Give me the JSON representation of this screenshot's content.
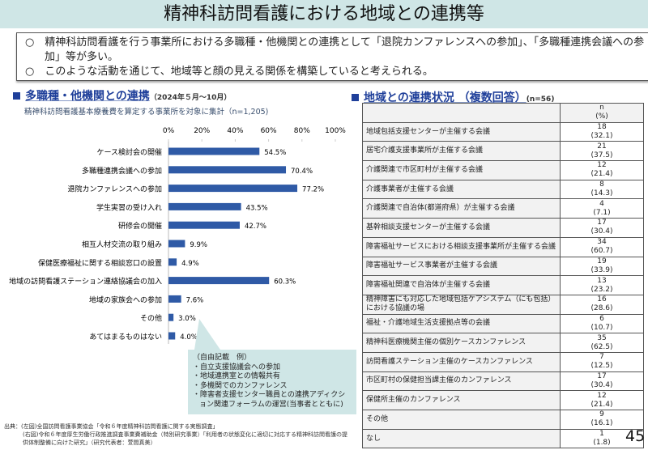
{
  "title": "精神科訪問看護における地域との連携等",
  "summary": [
    "○　精神科訪問看護を行う事業所における多職種・他機関との連携として「退院カンファレンスへの参加」、「多職種連携会議への参加」等が多い。",
    "○　このような活動を通じて、地域等と顔の見える関係を構築していると考えられる。"
  ],
  "left": {
    "heading": "多職種・他機関との連携",
    "period": "（2024年５月～10月）",
    "subtitle": "精神科訪問看護基本療養費を算定する事業所を対象に集計（n=1,205)"
  },
  "chart_data": {
    "type": "bar",
    "orientation": "horizontal",
    "title": "多職種・他機関との連携",
    "xlim": [
      0,
      100
    ],
    "ticks": [
      "0%",
      "20%",
      "40%",
      "60%",
      "80%",
      "100%"
    ],
    "categories": [
      "ケース検討会の開催",
      "多職種連携会議への参加",
      "退院カンファレンスへの参加",
      "学生実習の受け入れ",
      "研修会の開催",
      "相互人材交流の取り組み",
      "保健医療福祉に関する相談窓口の設置",
      "地域の訪問看護ステーション連絡協議会の加入",
      "地域の家族会への参加",
      "その他",
      "あてはまるものはない"
    ],
    "values": [
      54.5,
      70.4,
      77.2,
      43.5,
      42.7,
      9.9,
      4.9,
      60.3,
      7.6,
      3.0,
      4.0
    ],
    "labels": [
      "54.5%",
      "70.4%",
      "77.2%",
      "43.5%",
      "42.7%",
      "9.9%",
      "4.9%",
      "60.3%",
      "7.6%",
      "3.0%",
      "4.0%"
    ],
    "bar_color": "#2f5aa6"
  },
  "callout": [
    "（自由記載　例）",
    "・自立支援協議会への参加",
    "・地域連携室との情報共有",
    "・多機関でのカンファレンス",
    "・障害者支援センター職員との連携アディクション関連フォーラムの運営(当事者とともに)"
  ],
  "right": {
    "heading": "地域との連携状況 （複数回答）",
    "n": "(n=56)",
    "header": [
      "n",
      "(%)"
    ],
    "rows": [
      [
        "地域包括支援センターが主催する会議",
        "18",
        "(32.1)"
      ],
      [
        "居宅介護支援事業所が主催する会議",
        "21",
        "(37.5)"
      ],
      [
        "介護関連で市区町村が主催する会議",
        "12",
        "(21.4)"
      ],
      [
        "介護事業者が主催する会議",
        "8",
        "(14.3)"
      ],
      [
        "介護関連で自治体(都道府県）が主催する会議",
        "4",
        "(7.1)"
      ],
      [
        "基幹相談支援センターが主催する会議",
        "17",
        "(30.4)"
      ],
      [
        "障害福祉サービスにおける相談支援事業所が主催する会議",
        "34",
        "(60.7)"
      ],
      [
        "障害福祉サービス事業者が主催する会議",
        "19",
        "(33.9)"
      ],
      [
        "障害福祉関連で自治体が主催する会議",
        "13",
        "(23.2)"
      ],
      [
        "精神障害にも対応した地域包括ケアシステム（にも包括）における協議の場",
        "16",
        "(28.6)"
      ],
      [
        "福祉・介護地域生活支援拠点等の会議",
        "6",
        "(10.7)"
      ],
      [
        "精神科医療機関主催の個別ケースカンファレンス",
        "35",
        "(62.5)"
      ],
      [
        "訪問看護ステーション主催のケースカンファレンス",
        "7",
        "(12.5)"
      ],
      [
        "市区町村の保健担当課主催のカンファレンス",
        "17",
        "(30.4)"
      ],
      [
        "保健所主催のカンファレンス",
        "12",
        "(21.4)"
      ],
      [
        "その他",
        "9",
        "(16.1)"
      ],
      [
        "なし",
        "1",
        "(1.8)"
      ]
    ]
  },
  "source": [
    "出典：(左図)全国訪問看護事業協会「令和６年度精神科訪問看護に関する実態調査」",
    "(右図)令和６年度厚生労働行政推進調査事業費補助金（特別研究事業）「利用者の状態変化に適切に対応する精神科訪問看護の提供体制整備に向けた研究」（研究代表者：萱間真美）"
  ],
  "page_number": "45"
}
